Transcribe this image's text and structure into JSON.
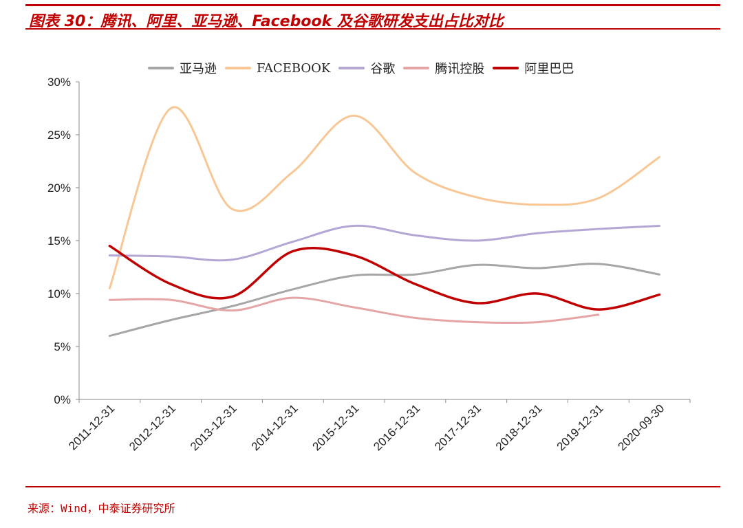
{
  "header": {
    "title": "图表 30：腾讯、阿里、亚马逊、Facebook 及谷歌研发支出占比对比"
  },
  "footer": {
    "source": "来源：Wind，中泰证券研究所"
  },
  "chart_data": {
    "type": "line",
    "title": "",
    "xlabel": "",
    "ylabel": "",
    "ylim": [
      0,
      30
    ],
    "yticks": [
      "0%",
      "5%",
      "10%",
      "15%",
      "20%",
      "25%",
      "30%"
    ],
    "y_unit": "%",
    "grid": false,
    "legend_position": "top",
    "categories": [
      "2011-12-31",
      "2012-12-31",
      "2013-12-31",
      "2014-12-31",
      "2015-12-31",
      "2016-12-31",
      "2017-12-31",
      "2018-12-31",
      "2019-12-31",
      "2020-09-30"
    ],
    "series": [
      {
        "name": "亚马逊",
        "color": "#a6a6a6",
        "values": [
          6.0,
          7.5,
          8.8,
          10.4,
          11.7,
          11.8,
          12.7,
          12.4,
          12.8,
          11.8
        ]
      },
      {
        "name": "FACEBOOK",
        "color": "#f8c795",
        "values": [
          10.5,
          27.5,
          18.0,
          21.5,
          26.8,
          21.4,
          19.1,
          18.4,
          19.0,
          22.9
        ]
      },
      {
        "name": "谷歌",
        "color": "#b4a7d6",
        "values": [
          13.6,
          13.5,
          13.2,
          14.9,
          16.4,
          15.5,
          15.0,
          15.7,
          16.1,
          16.4
        ]
      },
      {
        "name": "腾讯控股",
        "color": "#e6a5a5",
        "values": [
          9.4,
          9.4,
          8.4,
          9.6,
          8.7,
          7.7,
          7.3,
          7.3,
          8.0,
          null
        ]
      },
      {
        "name": "阿里巴巴",
        "color": "#c00000",
        "values": [
          14.5,
          10.9,
          9.7,
          14.0,
          13.6,
          10.9,
          9.1,
          10.0,
          8.5,
          9.9
        ]
      }
    ]
  }
}
